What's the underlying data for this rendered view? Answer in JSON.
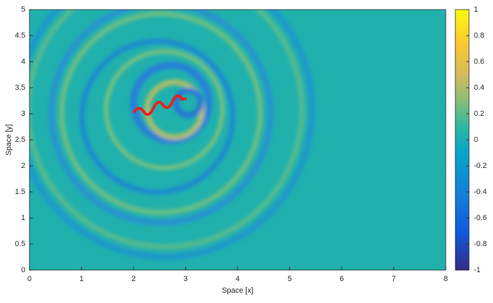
{
  "chart_data": {
    "type": "heatmap",
    "xlabel": "Space [x]",
    "ylabel": "Space [y]",
    "xlim": [
      0,
      8
    ],
    "xticks": [
      0,
      1,
      2,
      3,
      4,
      5,
      6,
      7,
      8
    ],
    "ylim": [
      0,
      5
    ],
    "yticks": [
      0,
      0.5,
      1,
      1.5,
      2,
      2.5,
      3,
      3.5,
      4,
      4.5,
      5
    ],
    "clim": [
      -1,
      1
    ],
    "cticks": [
      -1,
      -0.8,
      -0.6,
      -0.4,
      -0.2,
      0,
      0.2,
      0.4,
      0.6,
      0.8,
      1
    ],
    "colormap": "parula"
  }
}
